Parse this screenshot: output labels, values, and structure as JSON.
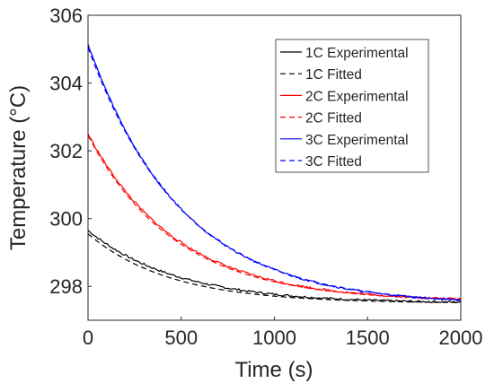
{
  "chart_data": {
    "type": "line",
    "title": "",
    "xlabel": "Time (s)",
    "ylabel": "Temperature (°C)",
    "xlim": [
      0,
      2000
    ],
    "ylim": [
      297,
      306
    ],
    "xticks": [
      0,
      500,
      1000,
      1500,
      2000
    ],
    "yticks": [
      298,
      300,
      302,
      304,
      306
    ],
    "grid": false,
    "legend_position": "top-right",
    "series": [
      {
        "name": "1C Experimental",
        "color": "#000000",
        "dash": "solid",
        "tau": 480,
        "Tstart": 299.65,
        "Tend": 297.5
      },
      {
        "name": "1C Fitted",
        "color": "#000000",
        "dash": "dashed",
        "tau": 440,
        "Tstart": 299.55,
        "Tend": 297.5
      },
      {
        "name": "2C Experimental",
        "color": "#ff0000",
        "dash": "solid",
        "tau": 480,
        "Tstart": 302.5,
        "Tend": 297.55
      },
      {
        "name": "2C Fitted",
        "color": "#ff0000",
        "dash": "dashed",
        "tau": 470,
        "Tstart": 302.45,
        "Tend": 297.55
      },
      {
        "name": "3C Experimental",
        "color": "#0000ff",
        "dash": "solid",
        "tau": 500,
        "Tstart": 305.15,
        "Tend": 297.45
      },
      {
        "name": "3C Fitted",
        "color": "#0000ff",
        "dash": "dashed",
        "tau": 505,
        "Tstart": 305.05,
        "Tend": 297.45
      }
    ]
  }
}
